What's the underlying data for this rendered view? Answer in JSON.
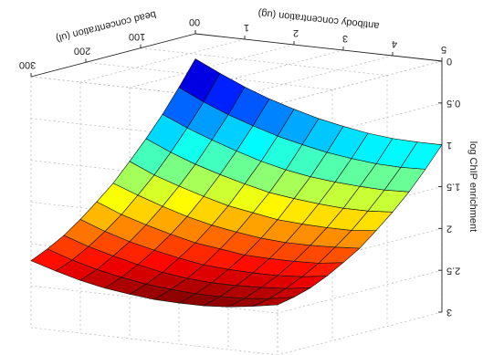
{
  "chart_data": {
    "type": "surface",
    "xlabel": "antibody concentration (ug)",
    "ylabel": "bead concentration (ul)",
    "zlabel": "log ChIP enrichment",
    "x": [
      0,
      0.5,
      1,
      1.5,
      2,
      2.5,
      3,
      3.5,
      4,
      4.5,
      5
    ],
    "y": [
      0,
      30,
      60,
      90,
      120,
      150,
      180,
      210,
      240,
      270,
      300
    ],
    "z": [
      [
        0.3,
        0.44,
        0.57,
        0.68,
        0.77,
        0.85,
        0.91,
        0.96,
        0.99,
        1.0,
        1.0
      ],
      [
        0.59,
        0.73,
        0.85,
        0.95,
        1.04,
        1.11,
        1.17,
        1.21,
        1.24,
        1.25,
        1.24
      ],
      [
        0.86,
        0.99,
        1.1,
        1.2,
        1.29,
        1.36,
        1.41,
        1.44,
        1.46,
        1.47,
        1.46
      ],
      [
        1.1,
        1.23,
        1.34,
        1.43,
        1.51,
        1.58,
        1.62,
        1.65,
        1.67,
        1.67,
        1.65
      ],
      [
        1.32,
        1.45,
        1.55,
        1.64,
        1.72,
        1.77,
        1.82,
        1.84,
        1.85,
        1.85,
        1.82
      ],
      [
        1.53,
        1.64,
        1.74,
        1.83,
        1.9,
        1.95,
        1.99,
        2.01,
        2.01,
        2.0,
        1.98
      ],
      [
        1.7,
        1.82,
        1.91,
        1.99,
        2.06,
        2.1,
        2.14,
        2.15,
        2.15,
        2.14,
        2.1
      ],
      [
        1.86,
        1.97,
        2.06,
        2.13,
        2.19,
        2.24,
        2.26,
        2.27,
        2.27,
        2.25,
        2.21
      ],
      [
        2.0,
        2.1,
        2.18,
        2.25,
        2.31,
        2.35,
        2.37,
        2.37,
        2.36,
        2.34,
        2.3
      ],
      [
        2.11,
        2.21,
        2.29,
        2.35,
        2.4,
        2.43,
        2.45,
        2.45,
        2.44,
        2.41,
        2.36
      ],
      [
        2.2,
        2.29,
        2.37,
        2.43,
        2.47,
        2.5,
        2.51,
        2.51,
        2.49,
        2.45,
        2.4
      ]
    ],
    "xlim": [
      0,
      5
    ],
    "xticks": [
      0,
      1,
      2,
      3,
      4,
      5
    ],
    "ylim": [
      0,
      300
    ],
    "yticks": [
      0,
      100,
      200,
      300
    ],
    "zlim": [
      0,
      3
    ],
    "zticks": [
      0,
      0.5,
      1,
      1.5,
      2,
      2.5,
      3
    ],
    "colormap": "jet",
    "grid": true,
    "rotated": true
  }
}
